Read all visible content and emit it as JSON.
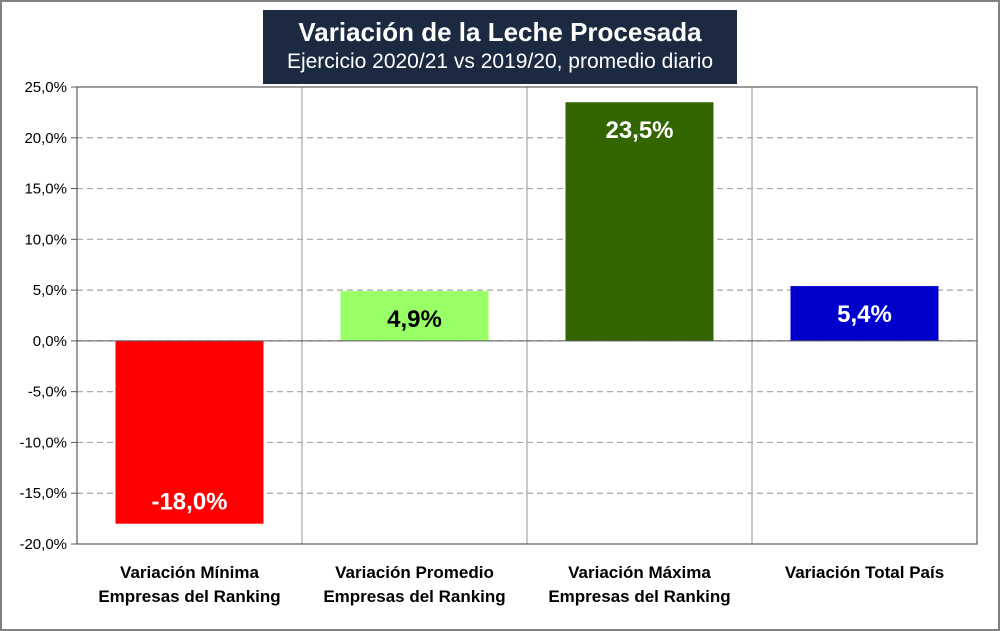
{
  "chart_data": {
    "type": "bar",
    "title": "Variación de la Leche Procesada",
    "subtitle": "Ejercicio 2020/21 vs 2019/20, promedio diario",
    "categories": [
      [
        "Variación Mínima",
        "Empresas del Ranking"
      ],
      [
        "Variación Promedio",
        "Empresas del Ranking"
      ],
      [
        "Variación Máxima",
        "Empresas del Ranking"
      ],
      [
        "Variación Total País"
      ]
    ],
    "values": [
      -18.0,
      4.9,
      23.5,
      5.4
    ],
    "value_labels": [
      "-18,0%",
      "4,9%",
      "23,5%",
      "5,4%"
    ],
    "bar_colors": [
      "#ff0000",
      "#99ff66",
      "#336600",
      "#0000cc"
    ],
    "label_colors": [
      "#ffffff",
      "#000000",
      "#ffffff",
      "#ffffff"
    ],
    "ylim": [
      -20,
      25
    ],
    "yticks": [
      25,
      20,
      15,
      10,
      5,
      0,
      -5,
      -10,
      -15,
      -20
    ],
    "ytick_labels": [
      "25,0%",
      "20,0%",
      "15,0%",
      "10,0%",
      "5,0%",
      "0,0%",
      "-5,0%",
      "-10,0%",
      "-15,0%",
      "-20,0%"
    ],
    "grid": true,
    "legend": "none",
    "xlabel": "",
    "ylabel": ""
  }
}
